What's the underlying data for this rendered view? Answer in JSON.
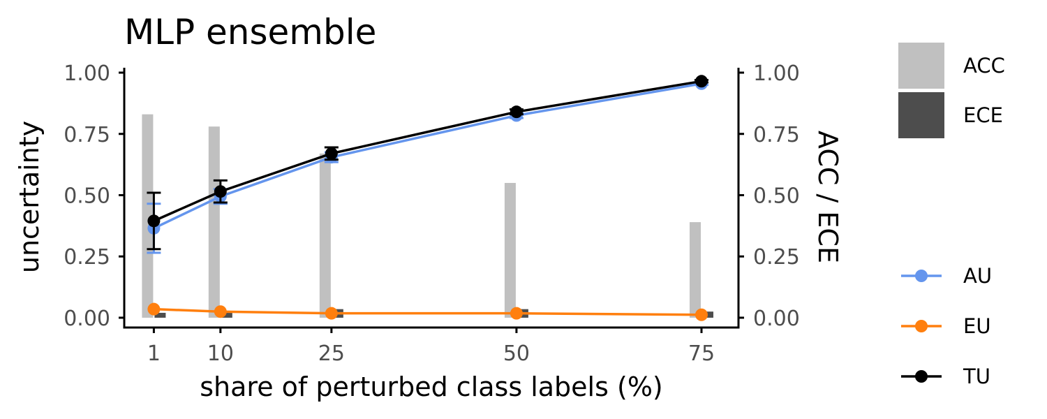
{
  "chart_data": {
    "type": "line",
    "title": "MLP ensemble",
    "xlabel": "share of perturbed class labels (%)",
    "ylabel": "uncertainty",
    "y2label": "ACC / ECE",
    "categories": [
      "1",
      "10",
      "25",
      "50",
      "75"
    ],
    "x": [
      1,
      10,
      25,
      50,
      75
    ],
    "xlim": [
      -3,
      80
    ],
    "ylim": [
      -0.04,
      1.02
    ],
    "yticks": [
      "0.00",
      "0.25",
      "0.50",
      "0.75",
      "1.00"
    ],
    "y2ticks": [
      "0.00",
      "0.25",
      "0.50",
      "0.75",
      "1.00"
    ],
    "grid": false,
    "bars": [
      {
        "name": "ACC",
        "color": "#c0c0c0",
        "values": [
          0.83,
          0.78,
          0.67,
          0.55,
          0.39
        ]
      },
      {
        "name": "ECE",
        "color": "#4d4d4d",
        "values": [
          0.02,
          0.025,
          0.035,
          0.035,
          0.025
        ]
      }
    ],
    "series": [
      {
        "name": "AU",
        "color": "#6495ed",
        "values": [
          0.365,
          0.495,
          0.655,
          0.825,
          0.955
        ],
        "err_low": [
          0.265,
          0.465,
          0.635,
          0.815,
          0.95
        ],
        "err_high": [
          0.465,
          0.525,
          0.675,
          0.835,
          0.96
        ]
      },
      {
        "name": "EU",
        "color": "#ff7f0e",
        "values": [
          0.035,
          0.025,
          0.018,
          0.018,
          0.012
        ]
      },
      {
        "name": "TU",
        "color": "#000000",
        "values": [
          0.395,
          0.515,
          0.67,
          0.84,
          0.965
        ],
        "err_low": [
          0.28,
          0.47,
          0.645,
          0.83,
          0.96
        ],
        "err_high": [
          0.51,
          0.56,
          0.695,
          0.85,
          0.97
        ]
      }
    ],
    "legend_bars": [
      "ACC",
      "ECE"
    ],
    "legend_lines": [
      "AU",
      "EU",
      "TU"
    ],
    "legend_position": "right"
  }
}
